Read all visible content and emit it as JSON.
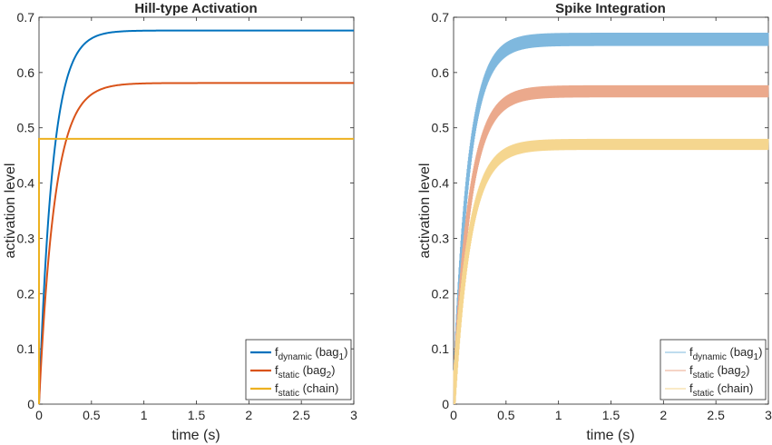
{
  "chart_data": [
    {
      "type": "line",
      "title": "Hill-type Activation",
      "xlabel": "time (s)",
      "ylabel": "activation level",
      "xlim": [
        0,
        3
      ],
      "ylim": [
        0,
        0.7
      ],
      "xticks": [
        0,
        0.5,
        1,
        1.5,
        2,
        2.5,
        3
      ],
      "xtick_labels": [
        "0",
        "0.5",
        "1",
        "1.5",
        "2",
        "2.5",
        "3"
      ],
      "yticks": [
        0,
        0.1,
        0.2,
        0.3,
        0.4,
        0.5,
        0.6,
        0.7
      ],
      "ytick_labels": [
        "0",
        "0.1",
        "0.2",
        "0.3",
        "0.4",
        "0.5",
        "0.6",
        "0.7"
      ],
      "grid": false,
      "legend_position": "bottom-right",
      "series": [
        {
          "name": "f",
          "sub": "dynamic",
          "label_suffix": " (bag",
          "label_sub2": "1",
          "label_end": ")",
          "color": "#0072BD",
          "kind": "exp",
          "final": 0.676,
          "tau": 0.13,
          "spiky": false
        },
        {
          "name": "f",
          "sub": "static",
          "label_suffix": " (bag",
          "label_sub2": "2",
          "label_end": ")",
          "color": "#D95319",
          "kind": "exp",
          "final": 0.581,
          "tau": 0.15,
          "spiky": false
        },
        {
          "name": "f",
          "sub": "static",
          "label_suffix": " (chain)",
          "label_sub2": "",
          "label_end": "",
          "color": "#EDB120",
          "kind": "step",
          "final": 0.48,
          "tau": 0.0,
          "spiky": false
        }
      ]
    },
    {
      "type": "line",
      "title": "Spike Integration",
      "xlabel": "time (s)",
      "ylabel": "activation level",
      "xlim": [
        0,
        3
      ],
      "ylim": [
        0,
        0.7
      ],
      "xticks": [
        0,
        0.5,
        1,
        1.5,
        2,
        2.5,
        3
      ],
      "xtick_labels": [
        "0",
        "0.5",
        "1",
        "1.5",
        "2",
        "2.5",
        "3"
      ],
      "yticks": [
        0,
        0.1,
        0.2,
        0.3,
        0.4,
        0.5,
        0.6,
        0.7
      ],
      "ytick_labels": [
        "0",
        "0.1",
        "0.2",
        "0.3",
        "0.4",
        "0.5",
        "0.6",
        "0.7"
      ],
      "grid": false,
      "legend_position": "bottom-right",
      "series": [
        {
          "name": "f",
          "sub": "dynamic",
          "label_suffix": " (bag",
          "label_sub2": "1",
          "label_end": ")",
          "color": "#7FB8DE",
          "kind": "exp",
          "final": 0.66,
          "tau": 0.14,
          "spiky": true,
          "ripple": 0.012
        },
        {
          "name": "f",
          "sub": "static",
          "label_suffix": " (bag",
          "label_sub2": "2",
          "label_end": ")",
          "color": "#EBA98C",
          "kind": "exp",
          "final": 0.566,
          "tau": 0.15,
          "spiky": true,
          "ripple": 0.011
        },
        {
          "name": "f",
          "sub": "static",
          "label_suffix": " (chain)",
          "label_sub2": "",
          "label_end": "",
          "color": "#F5D68F",
          "kind": "exp",
          "final": 0.47,
          "tau": 0.15,
          "spiky": true,
          "ripple": 0.01
        }
      ]
    }
  ]
}
